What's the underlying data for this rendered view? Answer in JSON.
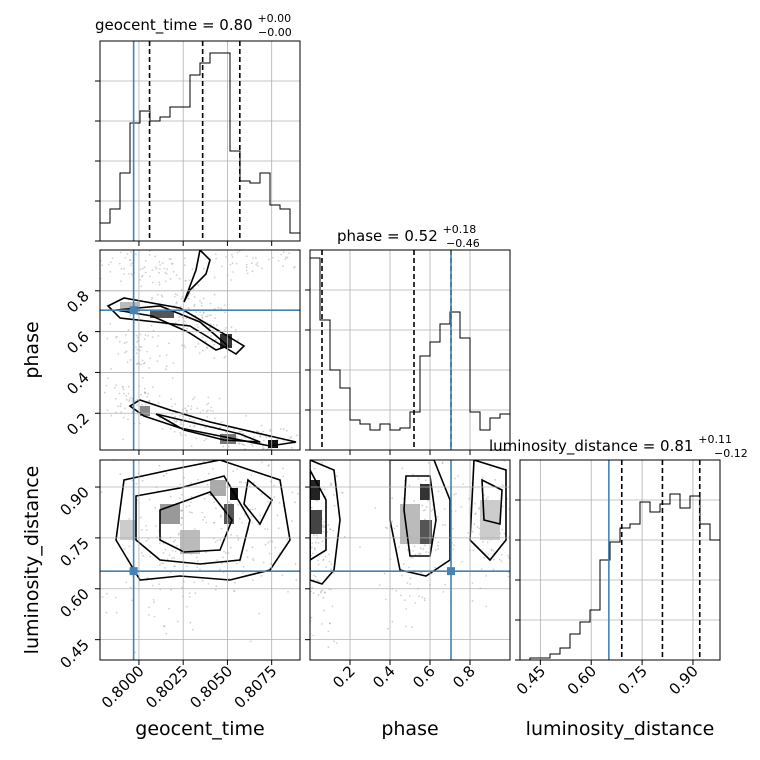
{
  "chart_data": {
    "type": "corner",
    "parameters": [
      "geocent_time",
      "phase",
      "luminosity_distance"
    ],
    "truth": {
      "geocent_time": 0.7997,
      "phase": 0.705,
      "luminosity_distance": 0.652
    },
    "truth_color": "#4682b4",
    "panels": {
      "geocent_time": {
        "title": {
          "main": "geocent_time = 0.80",
          "sup": "+0.00",
          "sub": "−0.00"
        },
        "xlim": [
          0.7978,
          0.8091
        ],
        "quantiles": [
          0.8006,
          0.8036,
          0.8057
        ],
        "hist": [
          0.09,
          0.16,
          0.34,
          0.59,
          0.65,
          0.6,
          0.62,
          0.67,
          0.67,
          0.83,
          0.89,
          0.94,
          0.94,
          0.45,
          0.3,
          0.29,
          0.34,
          0.18,
          0.16,
          0.04
        ]
      },
      "phase": {
        "title": {
          "main": "phase = 0.52",
          "sup": "+0.18",
          "sub": "−0.46"
        },
        "xlim": [
          0.0,
          1.0
        ],
        "quantiles": [
          0.06,
          0.52,
          0.705
        ],
        "hist": [
          0.96,
          0.65,
          0.4,
          0.31,
          0.15,
          0.13,
          0.1,
          0.13,
          0.1,
          0.11,
          0.19,
          0.47,
          0.54,
          0.63,
          0.69,
          0.56,
          0.19,
          0.1,
          0.16,
          0.18
        ]
      },
      "luminosity_distance": {
        "title": {
          "main": "luminosity_distance = 0.81",
          "sup": "+0.11",
          "sub": "−0.12"
        },
        "xlim": [
          0.39,
          0.9797
        ],
        "quantiles": [
          0.69,
          0.81,
          0.92
        ],
        "hist": [
          0.0,
          0.01,
          0.01,
          0.03,
          0.06,
          0.13,
          0.19,
          0.25,
          0.5,
          0.59,
          0.66,
          0.68,
          0.79,
          0.74,
          0.78,
          0.83,
          0.76,
          0.82,
          0.68,
          0.6
        ]
      }
    },
    "ylims": {
      "phase": [
        0.02,
        1.0
      ],
      "luminosity_distance": [
        0.39,
        0.9797
      ]
    },
    "ticks": {
      "geocent_time": [
        "0.8000",
        "0.8025",
        "0.8050",
        "0.8075"
      ],
      "phase": [
        "0.2",
        "0.4",
        "0.6",
        "0.8"
      ],
      "luminosity_distance": [
        "0.45",
        "0.60",
        "0.75",
        "0.90"
      ]
    },
    "tick_values": {
      "geocent_time": [
        0.8,
        0.8025,
        0.805,
        0.8075
      ],
      "phase": [
        0.2,
        0.4,
        0.6,
        0.8
      ],
      "luminosity_distance": [
        0.45,
        0.6,
        0.75,
        0.9
      ]
    },
    "axis_labels": {
      "geocent_time": "geocent_time",
      "phase": "phase",
      "luminosity_distance": "luminosity_distance"
    },
    "grid": true
  }
}
